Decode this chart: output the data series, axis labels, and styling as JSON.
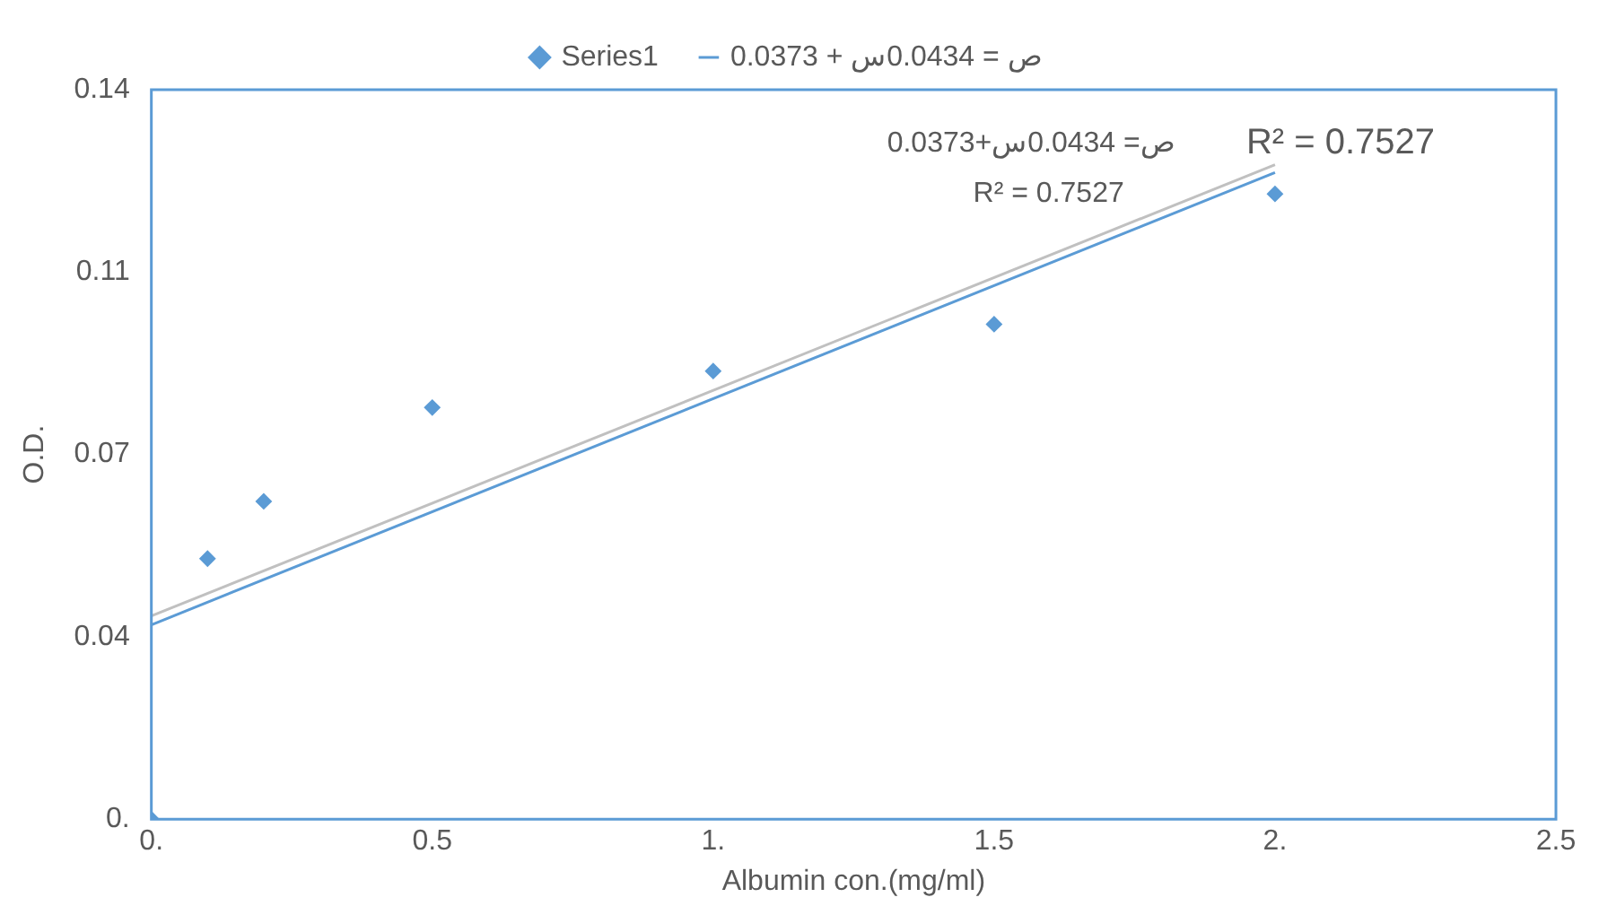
{
  "chart_data": {
    "type": "scatter",
    "xlabel": "Albumin con.(mg/ml)",
    "ylabel": "O.D.",
    "xlim": [
      0,
      2.5
    ],
    "xticks": [
      {
        "value": 0,
        "label": "0."
      },
      0.5,
      {
        "value": 1,
        "label": "1."
      },
      1.5,
      {
        "value": 2,
        "label": "2."
      },
      2.5
    ],
    "ylim": [
      0,
      0.14
    ],
    "yticks": [
      {
        "value": 0,
        "label": "0."
      },
      {
        "value": 0.035,
        "label": "0.04"
      },
      0.07,
      {
        "value": 0.105,
        "label": "0.11"
      },
      0.14
    ],
    "grid": false,
    "legend": "top",
    "marker": "diamond",
    "series": [
      {
        "name": "Series1",
        "color": "#5b9bd5",
        "x": [
          0,
          0.1,
          0.2,
          0.5,
          1,
          1.5,
          2
        ],
        "values": [
          0,
          0.05,
          0.061,
          0.079,
          0.086,
          0.095,
          0.12
        ]
      },
      {
        "name": "ص = 0.0434س + 0.0373",
        "type": "line",
        "color": "#5b9bd5",
        "marker": "none",
        "x": [
          0,
          2
        ],
        "values": [
          0.0373,
          0.1241
        ]
      },
      {
        "type": "line",
        "color": "#c0c0c0",
        "marker": "none",
        "x": [
          0,
          2
        ],
        "values": [
          0.039,
          0.1256
        ]
      }
    ],
    "annotations": [
      "R² = 0.7527",
      "ص= 0.0434س+0.0373",
      "R² = 0.7527"
    ]
  }
}
